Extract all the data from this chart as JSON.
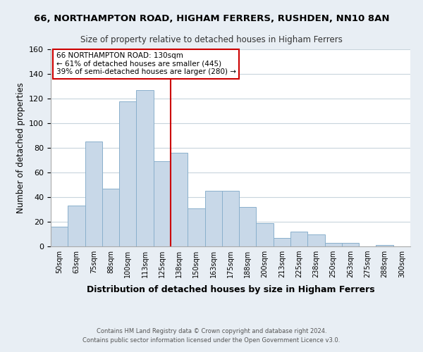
{
  "title": "66, NORTHAMPTON ROAD, HIGHAM FERRERS, RUSHDEN, NN10 8AN",
  "subtitle": "Size of property relative to detached houses in Higham Ferrers",
  "xlabel": "Distribution of detached houses by size in Higham Ferrers",
  "ylabel": "Number of detached properties",
  "bar_labels": [
    "50sqm",
    "63sqm",
    "75sqm",
    "88sqm",
    "100sqm",
    "113sqm",
    "125sqm",
    "138sqm",
    "150sqm",
    "163sqm",
    "175sqm",
    "188sqm",
    "200sqm",
    "213sqm",
    "225sqm",
    "238sqm",
    "250sqm",
    "263sqm",
    "275sqm",
    "288sqm",
    "300sqm"
  ],
  "bar_values": [
    16,
    33,
    85,
    47,
    118,
    127,
    69,
    76,
    31,
    45,
    45,
    32,
    19,
    7,
    12,
    10,
    3,
    3,
    0,
    1,
    0
  ],
  "bar_color": "#c8d8e8",
  "bar_edge_color": "#8ab0cc",
  "vline_x": 6.5,
  "vline_color": "#cc0000",
  "ylim": [
    0,
    160
  ],
  "yticks": [
    0,
    20,
    40,
    60,
    80,
    100,
    120,
    140,
    160
  ],
  "annotation_title": "66 NORTHAMPTON ROAD: 130sqm",
  "annotation_line1": "← 61% of detached houses are smaller (445)",
  "annotation_line2": "39% of semi-detached houses are larger (280) →",
  "footer1": "Contains HM Land Registry data © Crown copyright and database right 2024.",
  "footer2": "Contains public sector information licensed under the Open Government Licence v3.0.",
  "bg_color": "#e8eef4",
  "plot_bg_color": "#ffffff",
  "grid_color": "#c8d4dc"
}
